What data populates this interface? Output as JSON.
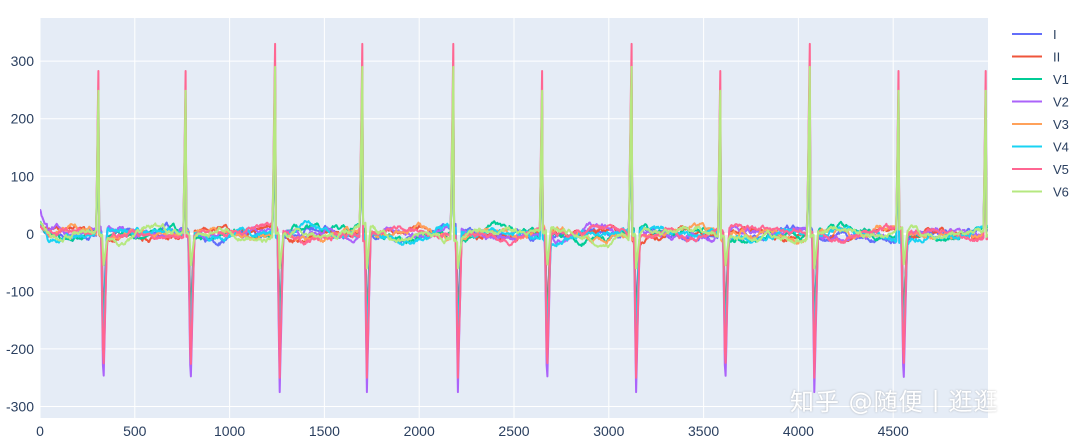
{
  "chart_data": {
    "type": "line",
    "title": "",
    "xlabel": "",
    "ylabel": "",
    "xlim": [
      0,
      5000
    ],
    "ylim": [
      -320,
      375
    ],
    "x_ticks": [
      0,
      500,
      1000,
      1500,
      2000,
      2500,
      3000,
      3500,
      4000,
      4500
    ],
    "y_ticks": [
      -300,
      -200,
      -100,
      0,
      100,
      200,
      300
    ],
    "grid": true,
    "legend_position": "right",
    "background_color": "#e5ecf6",
    "beat_positions": [
      310,
      770,
      1240,
      1700,
      2180,
      2650,
      3120,
      3590,
      4060,
      4530,
      4990
    ],
    "series": [
      {
        "name": "I",
        "color": "#636efa",
        "r_peak": 220,
        "s_trough": -150
      },
      {
        "name": "II",
        "color": "#ef553b",
        "r_peak": 230,
        "s_trough": -160
      },
      {
        "name": "V1",
        "color": "#00cc96",
        "r_peak": 200,
        "s_trough": -170
      },
      {
        "name": "V2",
        "color": "#ab63fa",
        "r_peak": 290,
        "s_trough": -275
      },
      {
        "name": "V3",
        "color": "#ffa15a",
        "r_peak": 260,
        "s_trough": -210
      },
      {
        "name": "V4",
        "color": "#19d3f3",
        "r_peak": 250,
        "s_trough": -200
      },
      {
        "name": "V5",
        "color": "#ff6692",
        "r_peak": 330,
        "s_trough": -250
      },
      {
        "name": "V6",
        "color": "#b6e880",
        "r_peak": 290,
        "s_trough": -60
      }
    ]
  },
  "watermark": "知乎 @随便丨逛逛"
}
